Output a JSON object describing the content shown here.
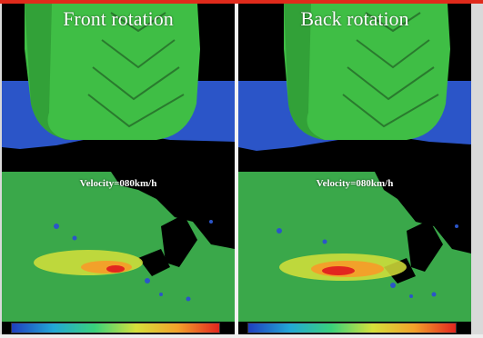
{
  "panels": [
    {
      "title": "Front rotation",
      "velocity_label": "Velocity=080km/h"
    },
    {
      "title": "Back rotation",
      "velocity_label": "Velocity=080km/h"
    }
  ],
  "colors": {
    "tire": "#3fbe45",
    "tire_dark": "#2e8a33",
    "ground_blue": "#2b55c8",
    "sim_green": "#3aa84a",
    "top_bar": "#e02a1b"
  },
  "colorbar_scale": [
    "#1f3fbf",
    "#22a7d6",
    "#39d17a",
    "#d6e03a",
    "#f2a12a",
    "#e2261f"
  ],
  "icons": [
    "tire-render",
    "velocity-field-render",
    "colorbar"
  ]
}
